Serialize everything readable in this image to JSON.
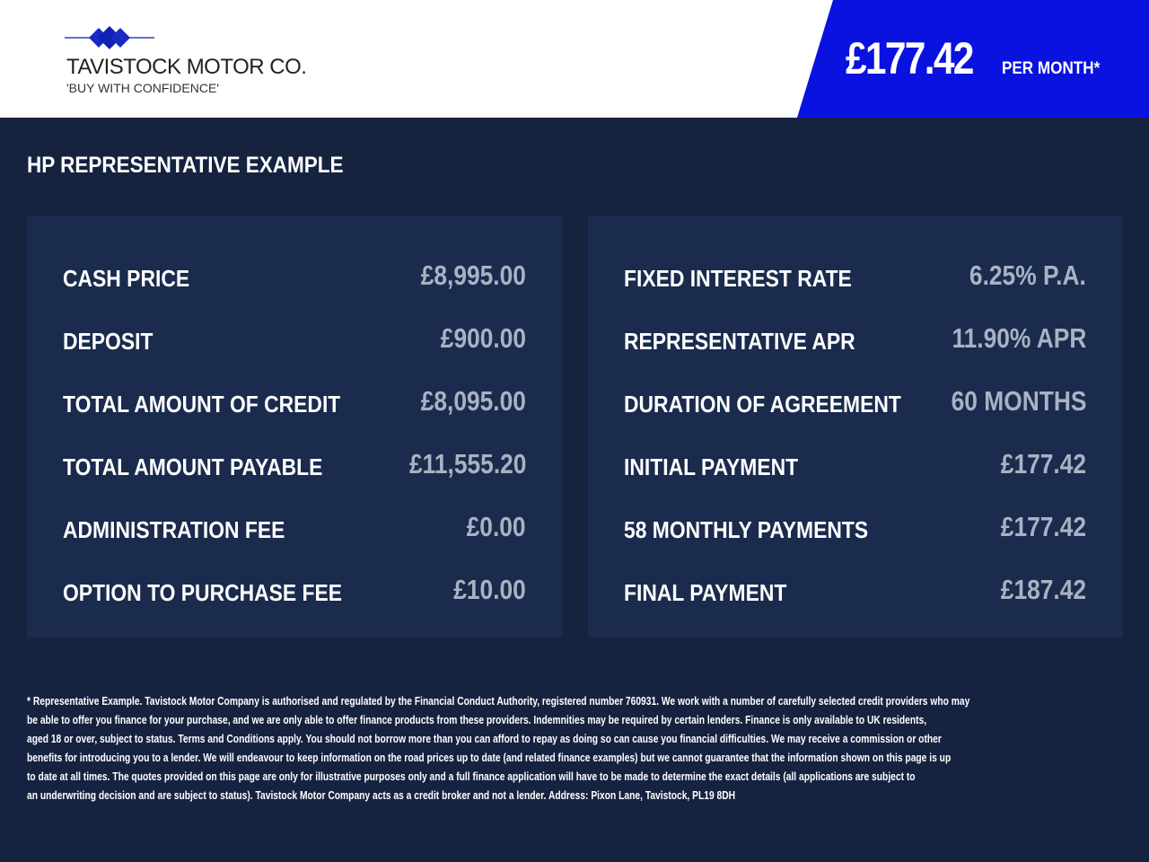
{
  "header": {
    "brand": "TAVISTOCK MOTOR CO.",
    "tagline": "'BUY WITH CONFIDENCE'",
    "monthly_price": "£177.42",
    "per_month": "PER MONTH*",
    "brand_color": "#0a12e0"
  },
  "section_title": "HP REPRESENTATIVE EXAMPLE",
  "left_panel": [
    {
      "label": "CASH PRICE",
      "value": "£8,995.00"
    },
    {
      "label": "DEPOSIT",
      "value": "£900.00"
    },
    {
      "label": "TOTAL AMOUNT OF CREDIT",
      "value": "£8,095.00"
    },
    {
      "label": "TOTAL AMOUNT PAYABLE",
      "value": "£11,555.20"
    },
    {
      "label": "ADMINISTRATION FEE",
      "value": "£0.00"
    },
    {
      "label": "OPTION TO PURCHASE FEE",
      "value": "£10.00"
    }
  ],
  "right_panel": [
    {
      "label": "FIXED INTEREST RATE",
      "value": "6.25% P.A."
    },
    {
      "label": "REPRESENTATIVE APR",
      "value": "11.90% APR"
    },
    {
      "label": "DURATION OF AGREEMENT",
      "value": "60 MONTHS"
    },
    {
      "label": "INITIAL PAYMENT",
      "value": "£177.42"
    },
    {
      "label": "58 MONTHLY PAYMENTS",
      "value": "£177.42"
    },
    {
      "label": "FINAL PAYMENT",
      "value": "£187.42"
    }
  ],
  "disclaimer": [
    "* Representative Example. Tavistock Motor Company is authorised and regulated by the Financial Conduct Authority, registered number 760931. We work with a number of carefully selected credit providers who may",
    "be able to offer you finance for your purchase, and we are only able to offer finance products from these providers. Indemnities may be required by certain lenders. Finance is only available to UK residents,",
    "aged 18 or over, subject to status. Terms and Conditions apply. You should not borrow more than you can afford to repay as doing so can cause you financial difficulties. We may receive a commission or other",
    "benefits for introducing you to a lender. We will endeavour to keep information on the road prices up to date (and related finance examples) but we cannot guarantee that the information shown on this page is up",
    "to date at all times. The quotes provided on this page are only for illustrative purposes only and a full finance application will have to be made to determine the exact details (all applications are subject to",
    "an underwriting decision and are subject to status). Tavistock Motor Company acts as a credit broker and not a lender. Address: Pixon Lane, Tavistock, PL19 8DH"
  ]
}
